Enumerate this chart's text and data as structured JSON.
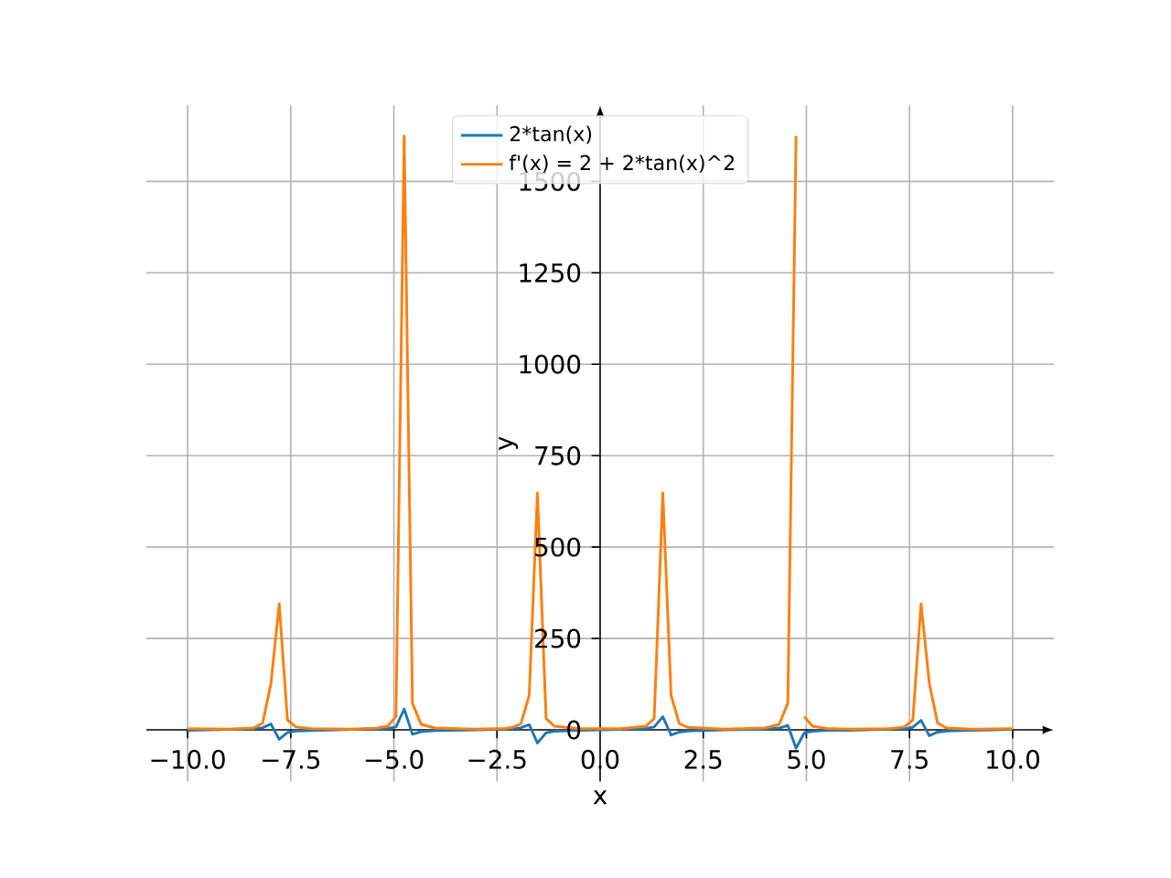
{
  "chart_data": {
    "type": "line",
    "xlabel": "x",
    "ylabel": "y",
    "x": [
      -10,
      -9,
      -8.4,
      -8.18,
      -7.98,
      -7.78,
      -7.58,
      -7.37,
      -7,
      -6,
      -5.4,
      -5.15,
      -4.95,
      -4.75,
      -4.55,
      -4.34,
      -4,
      -3,
      -2.3,
      -2.12,
      -1.92,
      -1.72,
      -1.52,
      -1.31,
      -1.11,
      -0.5,
      0.5,
      1.11,
      1.31,
      1.52,
      1.72,
      1.92,
      2.12,
      3,
      4,
      4.34,
      4.55,
      4.75,
      4.95,
      5.15,
      5.5,
      6,
      7,
      7.37,
      7.58,
      7.78,
      7.98,
      8.18,
      8.4,
      9,
      10
    ],
    "series": [
      {
        "name": "2*tan(x)",
        "color": "#1f77b4",
        "values": [
          -1,
          1,
          3,
          6,
          16,
          -26,
          -7,
          -3,
          -2,
          1,
          2,
          4,
          8,
          57,
          -12,
          -5,
          -2,
          0,
          2,
          3,
          6,
          14,
          -36,
          -8,
          -4,
          -1,
          1,
          4,
          8,
          36,
          -14,
          -6,
          -3,
          0,
          2,
          5,
          12,
          -50,
          -8,
          -4,
          -1,
          -1,
          2,
          3,
          7,
          26,
          -16,
          -6,
          -3,
          -1,
          1
        ]
      },
      {
        "name": "f'(x) = 2 + 2*tan(x)^2",
        "color": "#ff7f0e",
        "x": [
          -10,
          -9,
          -8.4,
          -8.18,
          -7.98,
          -7.78,
          -7.58,
          -7.37,
          -7,
          -6,
          -5.4,
          -5.15,
          -4.95,
          -4.75,
          -4.55,
          -4.34,
          -4,
          -3,
          -2.3,
          -2.12,
          -1.92,
          -1.72,
          -1.52,
          -1.31,
          -1.11,
          -0.5,
          0.5,
          1.11,
          1.31,
          1.52,
          1.72,
          1.92,
          2.12,
          3,
          4,
          4.34,
          4.55,
          4.75,
          4.85,
          4.95,
          5.15,
          5.5,
          6,
          7,
          7.37,
          7.58,
          7.78,
          7.98,
          8.18,
          8.4,
          9,
          10
        ],
        "values": [
          3,
          2,
          5,
          19,
          127,
          345,
          27,
          8,
          3,
          2,
          5,
          10,
          36,
          1624,
          73,
          15,
          5,
          2,
          4,
          7,
          17,
          94,
          648,
          31,
          10,
          3,
          3,
          10,
          31,
          648,
          94,
          17,
          7,
          2,
          5,
          15,
          73,
          1624,
          null,
          36,
          10,
          4,
          2,
          3,
          8,
          27,
          345,
          127,
          19,
          5,
          2,
          3
        ]
      }
    ],
    "xlim": [
      -11,
      11
    ],
    "ylim": [
      -141,
      1708
    ],
    "xticks": [
      {
        "value": -10,
        "label": "−10.0"
      },
      {
        "value": -7.5,
        "label": "−7.5"
      },
      {
        "value": -5,
        "label": "−5.0"
      },
      {
        "value": -2.5,
        "label": "−2.5"
      },
      {
        "value": 0,
        "label": "0.0"
      },
      {
        "value": 2.5,
        "label": "2.5"
      },
      {
        "value": 5,
        "label": "5.0"
      },
      {
        "value": 7.5,
        "label": "7.5"
      },
      {
        "value": 10,
        "label": "10.0"
      }
    ],
    "yticks": [
      0,
      250,
      500,
      750,
      1000,
      1250,
      1500
    ],
    "grid": true,
    "legend": "top"
  }
}
